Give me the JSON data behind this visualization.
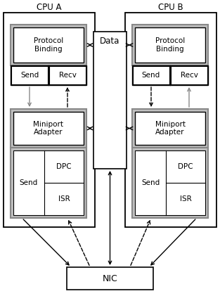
{
  "bg_color": "#ffffff",
  "cpu_a_label": "CPU A",
  "cpu_b_label": "CPU B",
  "data_label": "Data",
  "nic_label": "NIC",
  "proto_label": "Protocol\nBinding",
  "send_label": "Send",
  "recv_label": "Recv",
  "miniport_label": "Miniport\nAdapter",
  "dpc_label": "DPC",
  "isr_label": "ISR",
  "fig_width": 3.13,
  "fig_height": 4.21,
  "dpi": 100
}
